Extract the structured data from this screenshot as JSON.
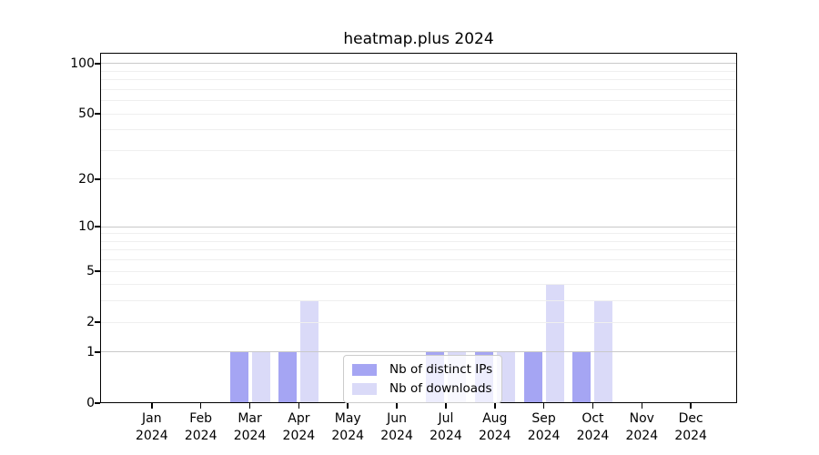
{
  "title": "heatmap.plus 2024",
  "colors": {
    "distinct_ips": "#a5a5f3",
    "downloads": "#dadaf8",
    "grid_major": "#c9c9c9",
    "grid_minor": "#efefef",
    "axis": "#000000",
    "background": "#ffffff"
  },
  "legend": {
    "items": [
      {
        "label": "Nb of distinct IPs",
        "series": "distinct_ips"
      },
      {
        "label": "Nb of downloads",
        "series": "downloads"
      }
    ]
  },
  "chart_data": {
    "type": "bar",
    "title": "heatmap.plus 2024",
    "categories": [
      "Jan",
      "Feb",
      "Mar",
      "Apr",
      "May",
      "Jun",
      "Jul",
      "Aug",
      "Sep",
      "Oct",
      "Nov",
      "Dec"
    ],
    "category_year": "2024",
    "series": [
      {
        "name": "Nb of distinct IPs",
        "color_key": "distinct_ips",
        "values": [
          0,
          0,
          1,
          1,
          0,
          0,
          1,
          1,
          1,
          1,
          0,
          0
        ]
      },
      {
        "name": "Nb of downloads",
        "color_key": "downloads",
        "values": [
          0,
          0,
          1,
          3,
          0,
          0,
          1,
          1,
          4,
          3,
          0,
          0
        ]
      }
    ],
    "xlabel": "",
    "ylabel": "",
    "yscale": "log10(1+x)",
    "ylim": [
      0,
      116
    ],
    "ytick_values": [
      0,
      1,
      2,
      5,
      10,
      20,
      50,
      100
    ],
    "ytick_labels": [
      "0",
      "1",
      "2",
      "5",
      "10",
      "20",
      "50",
      "100"
    ],
    "grid_major_values": [
      1,
      10,
      100
    ],
    "grid_minor_values": [
      2,
      3,
      4,
      5,
      6,
      7,
      8,
      9,
      20,
      30,
      40,
      50,
      60,
      70,
      80,
      90
    ],
    "grid": true,
    "legend_position": "inside-bottom-center"
  }
}
